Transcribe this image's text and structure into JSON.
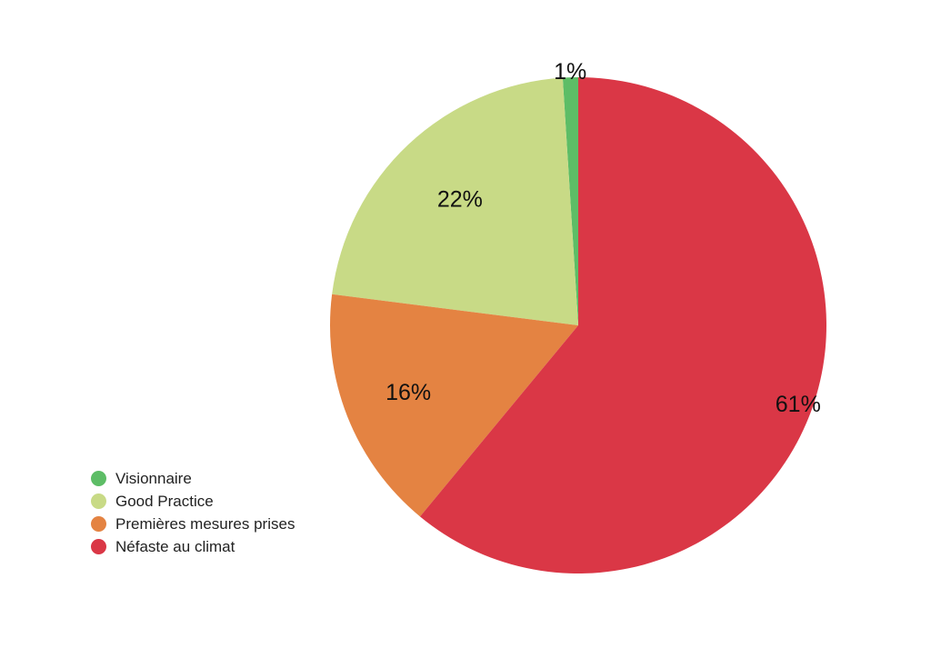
{
  "chart_data": {
    "type": "pie",
    "title": "",
    "start_angle_deg": 0,
    "direction": "counterclockwise",
    "legend_position": "bottom-left",
    "slices": [
      {
        "name": "Visionnaire",
        "value": 1,
        "label": "1%",
        "color": "#5dbd66"
      },
      {
        "name": "Good Practice",
        "value": 22,
        "label": "22%",
        "color": "#c8da86"
      },
      {
        "name": "Premières mesures prises",
        "value": 16,
        "label": "16%",
        "color": "#e48342"
      },
      {
        "name": "Néfaste au climat",
        "value": 61,
        "label": "61%",
        "color": "#da3746"
      }
    ]
  }
}
